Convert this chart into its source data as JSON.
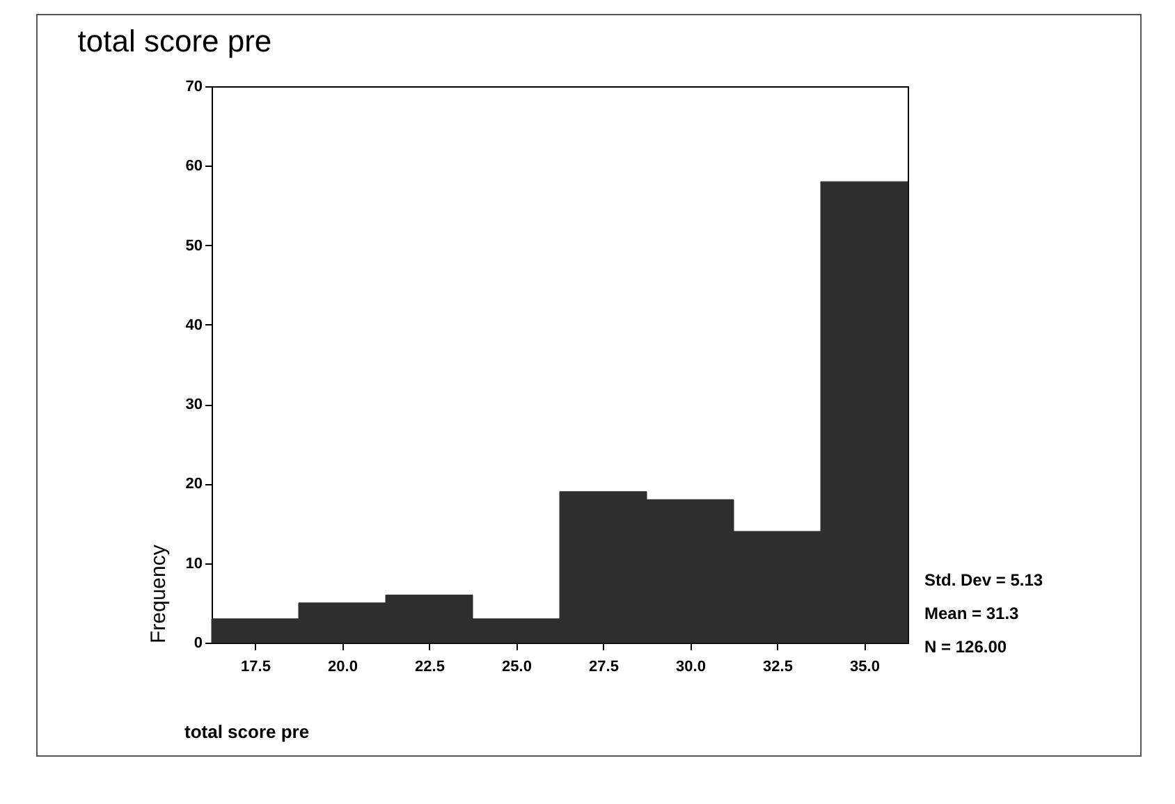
{
  "chart_data": {
    "type": "histogram",
    "title": "total score pre",
    "xlabel": "total score pre",
    "ylabel": "Frequency",
    "bins": [
      16.25,
      18.75,
      21.25,
      23.75,
      26.25,
      28.75,
      31.25,
      33.75,
      36.25
    ],
    "values": [
      3,
      5,
      6,
      3,
      19,
      18,
      14,
      58
    ],
    "color": "#2e2e2e",
    "xlim": [
      16.25,
      36.25
    ],
    "xticks": [
      17.5,
      {
        "value": 20,
        "label": "20.0"
      },
      22.5,
      {
        "value": 25,
        "label": "25.0"
      },
      27.5,
      {
        "value": 30,
        "label": "30.0"
      },
      32.5,
      {
        "value": 35,
        "label": "35.0"
      }
    ],
    "ylim": [
      0,
      70
    ],
    "yticks": [
      0,
      10,
      20,
      30,
      40,
      50,
      60,
      70
    ],
    "grid": false,
    "annotations": [
      "Std. Dev = 5.13",
      "Mean = 31.3",
      "N = 126.00"
    ]
  }
}
